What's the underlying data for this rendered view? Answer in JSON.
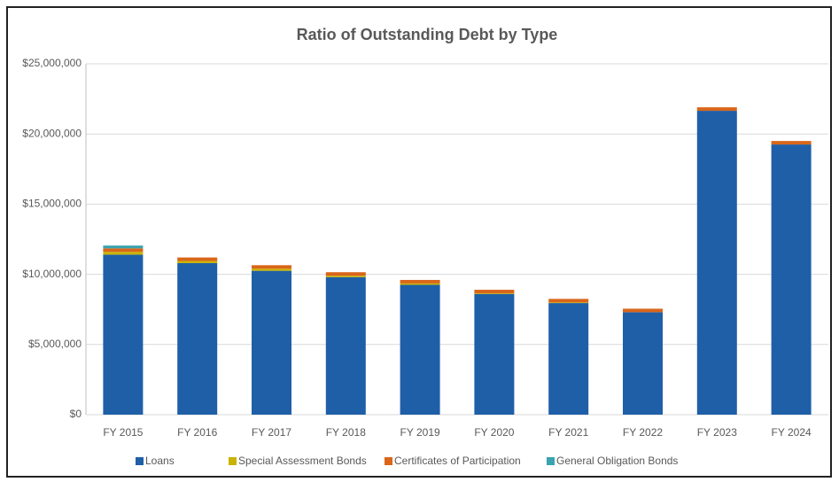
{
  "chart_data": {
    "type": "stacked_bar",
    "title": "Ratio of Outstanding Debt by Type",
    "categories": [
      "FY 2015",
      "FY 2016",
      "FY 2017",
      "FY 2018",
      "FY 2019",
      "FY 2020",
      "FY 2021",
      "FY 2022",
      "FY 2023",
      "FY 2024"
    ],
    "series": [
      {
        "name": "Loans",
        "color": "#1f5fa8",
        "values": [
          11400000,
          10800000,
          10250000,
          9800000,
          9250000,
          8600000,
          7950000,
          7300000,
          21650000,
          19250000
        ]
      },
      {
        "name": "Special Assessment Bonds",
        "color": "#c9b300",
        "values": [
          200000,
          150000,
          150000,
          100000,
          100000,
          50000,
          50000,
          0,
          0,
          0
        ]
      },
      {
        "name": "Certificates of Participation",
        "color": "#d9661a",
        "values": [
          250000,
          250000,
          250000,
          250000,
          250000,
          250000,
          250000,
          250000,
          250000,
          250000
        ]
      },
      {
        "name": "General Obligation Bonds",
        "color": "#3aa3b0",
        "values": [
          200000,
          0,
          0,
          0,
          0,
          0,
          0,
          0,
          0,
          0
        ]
      }
    ],
    "ylim": [
      0,
      25000000
    ],
    "yticks": [
      {
        "value": 0,
        "label": "$0"
      },
      {
        "value": 5000000,
        "label": "$5,000,000"
      },
      {
        "value": 10000000,
        "label": "$10,000,000"
      },
      {
        "value": 15000000,
        "label": "$15,000,000"
      },
      {
        "value": 20000000,
        "label": "$20,000,000"
      },
      {
        "value": 25000000,
        "label": "$25,000,000"
      }
    ],
    "grid": true,
    "legend": "bottom"
  }
}
